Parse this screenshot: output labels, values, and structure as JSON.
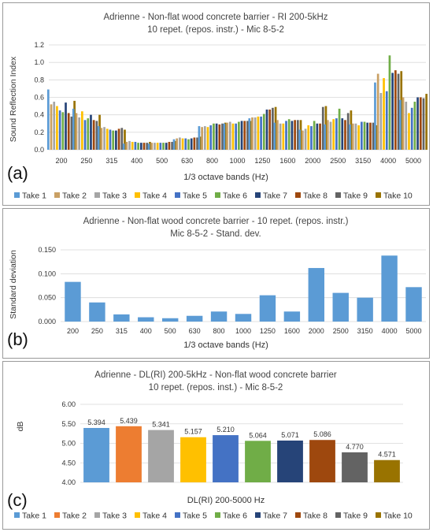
{
  "chart_data": [
    {
      "type": "bar",
      "title": [
        "Adrienne - Non-flat wood concrete barrier - RI 200-5kHz",
        "10 repet. (repos. instr.) - Mic 8-5-2"
      ],
      "panel_label": "(a)",
      "xlabel": "1/3 octave bands (Hz)",
      "ylabel": "Sound Reflection Index",
      "ylim": [
        0,
        1.2
      ],
      "yticks": [
        "0.0",
        "0.2",
        "0.4",
        "0.6",
        "0.8",
        "1.0",
        "1.2"
      ],
      "grid": true,
      "legend_position": "bottom",
      "categories": [
        "200",
        "250",
        "315",
        "400",
        "500",
        "630",
        "800",
        "1000",
        "1250",
        "1600",
        "2000",
        "2500",
        "3150",
        "4000",
        "5000"
      ],
      "series": [
        {
          "name": "Take 1",
          "color": "#5b9bd5",
          "values": [
            0.69,
            0.47,
            0.27,
            0.07,
            0.07,
            0.12,
            0.27,
            0.3,
            0.36,
            0.31,
            0.23,
            0.29,
            0.29,
            0.77,
            0.57
          ]
        },
        {
          "name": "Take 2",
          "color": "#c9a064",
          "values": [
            0.52,
            0.42,
            0.25,
            0.09,
            0.08,
            0.13,
            0.26,
            0.31,
            0.37,
            0.34,
            0.22,
            0.34,
            0.3,
            0.87,
            0.6
          ]
        },
        {
          "name": "Take 3",
          "color": "#a5a5a5",
          "values": [
            0.55,
            0.37,
            0.26,
            0.1,
            0.08,
            0.14,
            0.27,
            0.32,
            0.37,
            0.3,
            0.24,
            0.32,
            0.3,
            0.65,
            0.55
          ]
        },
        {
          "name": "Take 4",
          "color": "#ffc000",
          "values": [
            0.5,
            0.44,
            0.24,
            0.09,
            0.08,
            0.13,
            0.26,
            0.3,
            0.38,
            0.3,
            0.28,
            0.35,
            0.28,
            0.82,
            0.42
          ]
        },
        {
          "name": "Take 5",
          "color": "#4472c4",
          "values": [
            0.45,
            0.34,
            0.23,
            0.09,
            0.08,
            0.13,
            0.28,
            0.3,
            0.38,
            0.33,
            0.27,
            0.36,
            0.32,
            0.67,
            0.48
          ]
        },
        {
          "name": "Take 6",
          "color": "#70ad47",
          "values": [
            0.43,
            0.36,
            0.22,
            0.08,
            0.08,
            0.12,
            0.3,
            0.32,
            0.41,
            0.35,
            0.33,
            0.47,
            0.32,
            1.08,
            0.55
          ]
        },
        {
          "name": "Take 7",
          "color": "#264478",
          "values": [
            0.54,
            0.4,
            0.22,
            0.08,
            0.08,
            0.13,
            0.3,
            0.33,
            0.46,
            0.33,
            0.3,
            0.36,
            0.31,
            0.88,
            0.6
          ]
        },
        {
          "name": "Take 8",
          "color": "#9e480e",
          "values": [
            0.42,
            0.34,
            0.24,
            0.08,
            0.09,
            0.14,
            0.29,
            0.33,
            0.46,
            0.34,
            0.3,
            0.34,
            0.31,
            0.91,
            0.6
          ]
        },
        {
          "name": "Take 9",
          "color": "#636363",
          "values": [
            0.38,
            0.33,
            0.25,
            0.08,
            0.09,
            0.14,
            0.3,
            0.33,
            0.48,
            0.34,
            0.49,
            0.42,
            0.31,
            0.87,
            0.59
          ]
        },
        {
          "name": "Take 10",
          "color": "#997300",
          "values": [
            0.56,
            0.4,
            0.23,
            0.09,
            0.1,
            0.15,
            0.31,
            0.33,
            0.49,
            0.34,
            0.5,
            0.45,
            0.28,
            0.9,
            0.64
          ]
        }
      ]
    },
    {
      "type": "bar",
      "title": [
        "Adrienne - Non-flat wood concrete barrier - 10 repet. (repos. instr.)",
        "Mic 8-5-2 - Stand. dev."
      ],
      "panel_label": "(b)",
      "xlabel": "1/3 octave bands (Hz)",
      "ylabel": "Standard deviation",
      "ylim": [
        0,
        0.15
      ],
      "yticks": [
        "0.000",
        "0.050",
        "0.100",
        "0.150"
      ],
      "grid": true,
      "categories": [
        "200",
        "250",
        "315",
        "400",
        "500",
        "630",
        "800",
        "1000",
        "1250",
        "1600",
        "2000",
        "2500",
        "3150",
        "4000",
        "5000"
      ],
      "color": "#5b9bd5",
      "values": [
        0.083,
        0.04,
        0.015,
        0.009,
        0.007,
        0.012,
        0.021,
        0.016,
        0.055,
        0.021,
        0.112,
        0.06,
        0.05,
        0.138,
        0.072
      ]
    },
    {
      "type": "bar",
      "title": [
        "Adrienne - DL(RI) 200-5kHz - Non-flat wood concrete barrier",
        "10 repet. (repos. inst.) - Mic 8-5-2"
      ],
      "panel_label": "(c)",
      "xlabel": "DL(RI) 200-5000 Hz",
      "ylabel": "dB",
      "ylim": [
        4.0,
        6.0
      ],
      "yticks": [
        "4.00",
        "4.50",
        "5.00",
        "5.50",
        "6.00"
      ],
      "grid": true,
      "legend_position": "bottom",
      "categories": [
        "Take 1",
        "Take 2",
        "Take 3",
        "Take 4",
        "Take 5",
        "Take 6",
        "Take 7",
        "Take 8",
        "Take 9",
        "Take 10"
      ],
      "colors": [
        "#5b9bd5",
        "#ed7d31",
        "#a5a5a5",
        "#ffc000",
        "#4472c4",
        "#70ad47",
        "#264478",
        "#9e480e",
        "#636363",
        "#997300"
      ],
      "values": [
        5.394,
        5.439,
        5.341,
        5.157,
        5.21,
        5.064,
        5.071,
        5.086,
        4.77,
        4.571
      ],
      "data_labels": [
        "5.394",
        "5.439",
        "5.341",
        "5.157",
        "5.210",
        "5.064",
        "5.071",
        "5.086",
        "4.770",
        "4.571"
      ]
    }
  ]
}
